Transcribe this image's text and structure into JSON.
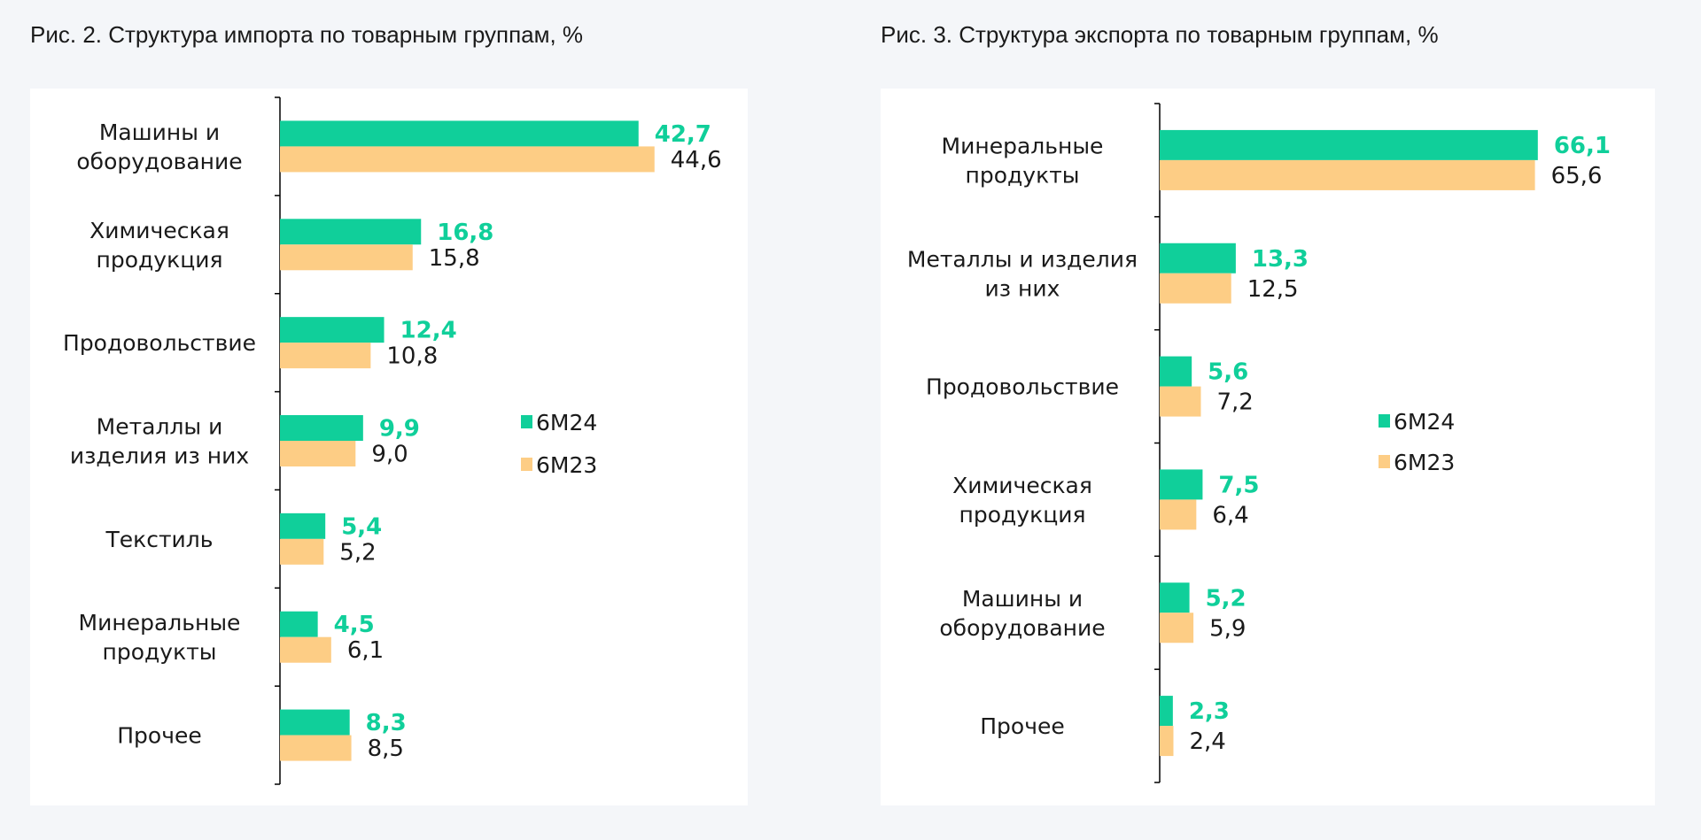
{
  "colors": {
    "series_6M24": "#10cf9a",
    "series_6M23": "#fdcd85"
  },
  "chart_data": [
    {
      "type": "bar",
      "orientation": "horizontal",
      "title": "Рис. 2. Структура импорта по товарным группам, %",
      "categories": [
        [
          "Машины и",
          "оборудование"
        ],
        [
          "Химическая",
          "продукция"
        ],
        [
          "Продовольствие"
        ],
        [
          "Металлы и",
          "изделия из них"
        ],
        [
          "Текстиль"
        ],
        [
          "Минеральные",
          "продукты"
        ],
        [
          "Прочее"
        ]
      ],
      "series": [
        {
          "name": "6M24",
          "values": [
            42.7,
            16.8,
            12.4,
            9.9,
            5.4,
            4.5,
            8.3
          ],
          "labels": [
            "42,7",
            "16,8",
            "12,4",
            "9,9",
            "5,4",
            "4,5",
            "8,3"
          ]
        },
        {
          "name": "6M23",
          "values": [
            44.6,
            15.8,
            10.8,
            9.0,
            5.2,
            6.1,
            8.5
          ],
          "labels": [
            "44,6",
            "15,8",
            "10,8",
            "9,0",
            "5,2",
            "6,1",
            "8,5"
          ]
        }
      ],
      "xlim": [
        0,
        48
      ],
      "legend": "right"
    },
    {
      "type": "bar",
      "orientation": "horizontal",
      "title": "Рис. 3. Структура экспорта по товарным группам, %",
      "categories": [
        [
          "Минеральные",
          "продукты"
        ],
        [
          "Металлы и изделия",
          "из них"
        ],
        [
          "Продовольствие"
        ],
        [
          "Химическая",
          "продукция"
        ],
        [
          "Машины и",
          "оборудование"
        ],
        [
          "Прочее"
        ]
      ],
      "series": [
        {
          "name": "6M24",
          "values": [
            66.1,
            13.3,
            5.6,
            7.5,
            5.2,
            2.3
          ],
          "labels": [
            "66,1",
            "13,3",
            "5,6",
            "7,5",
            "5,2",
            "2,3"
          ]
        },
        {
          "name": "6M23",
          "values": [
            65.6,
            12.5,
            7.2,
            6.4,
            5.9,
            2.4
          ],
          "labels": [
            "65,6",
            "12,5",
            "7,2",
            "6,4",
            "5,9",
            "2,4"
          ]
        }
      ],
      "xlim": [
        0,
        70
      ],
      "legend": "right"
    }
  ]
}
